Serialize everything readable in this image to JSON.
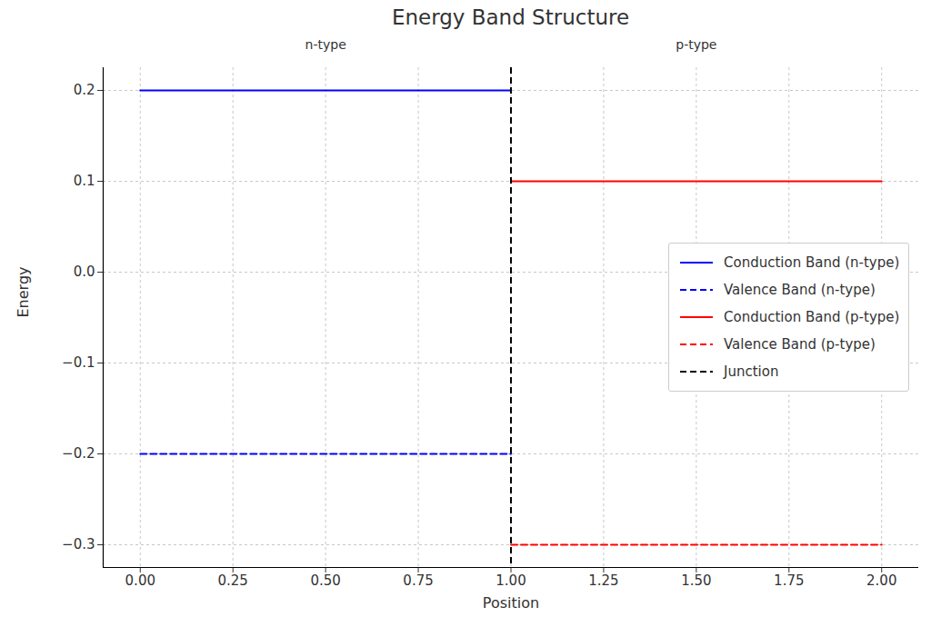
{
  "chart_data": {
    "type": "line",
    "title": "Energy Band Structure",
    "x_label": "Position",
    "y_label": "Energy",
    "xlim": [
      -0.1,
      2.1
    ],
    "ylim": [
      -0.325,
      0.225
    ],
    "xticks": [
      {
        "value": 0,
        "label": "0.00"
      },
      0.25,
      {
        "value": 0.5,
        "label": "0.50"
      },
      0.75,
      {
        "value": 1,
        "label": "1.00"
      },
      1.25,
      {
        "value": 1.5,
        "label": "1.50"
      },
      1.75,
      {
        "value": 2,
        "label": "2.00"
      }
    ],
    "yticks": [
      {
        "value": -0.3,
        "label": "−0.3"
      },
      {
        "value": -0.2,
        "label": "−0.2"
      },
      {
        "value": -0.1,
        "label": "−0.1"
      },
      {
        "value": 0,
        "label": "0.0"
      },
      0.1,
      0.2
    ],
    "grid": true,
    "legend": "center right",
    "annotations": [
      {
        "text": "n-type",
        "x": 0.5,
        "y": 0.25
      },
      {
        "text": "p-type",
        "x": 1.5,
        "y": 0.25
      }
    ],
    "series": [
      {
        "name": "Conduction Band (n-type)",
        "color": "#0000ff",
        "line_style": "solid",
        "x": [
          0,
          1
        ],
        "values": [
          0.2,
          0.2
        ]
      },
      {
        "name": "Valence Band (n-type)",
        "color": "#0000ff",
        "line_style": "dashed",
        "x": [
          0,
          1
        ],
        "values": [
          -0.2,
          -0.2
        ]
      },
      {
        "name": "Conduction Band (p-type)",
        "color": "#ff0000",
        "line_style": "solid",
        "x": [
          1,
          2
        ],
        "values": [
          0.1,
          0.1
        ]
      },
      {
        "name": "Valence Band (p-type)",
        "color": "#ff0000",
        "line_style": "dashed",
        "x": [
          1,
          2
        ],
        "values": [
          -0.3,
          -0.3
        ]
      },
      {
        "name": "Junction",
        "type": "vline",
        "color": "#000000",
        "line_style": "dashed",
        "x": [
          1
        ]
      }
    ]
  }
}
